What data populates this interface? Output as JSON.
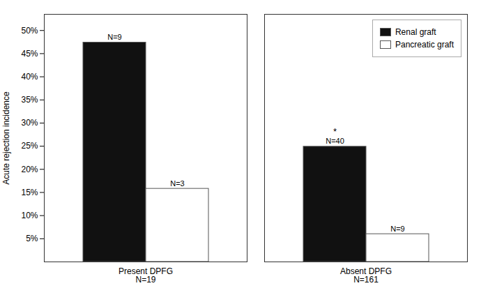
{
  "chart_data": {
    "type": "bar",
    "categories": [
      "Present DPFG\nN=19",
      "Absent DPFG\nN=161"
    ],
    "series": [
      {
        "name": "Renal graft",
        "color": "#111111",
        "values": [
          0.474,
          0.249
        ],
        "labels": [
          "N=9",
          "N=40"
        ]
      },
      {
        "name": "Pancreatic graft",
        "color": "#ffffff",
        "values": [
          0.158,
          0.06
        ],
        "labels": [
          "N=3",
          "N=9"
        ]
      }
    ],
    "annotations": [
      {
        "text": "*",
        "category": "Absent DPFG\nN=161",
        "series": "Renal graft"
      }
    ],
    "ylabel": "Acute rejection incidence",
    "ylim": [
      0,
      0.535
    ],
    "yticks": [
      {
        "value": 0.05,
        "label": "5%"
      },
      {
        "value": 0.1,
        "label": "10%"
      },
      {
        "value": 0.15,
        "label": "15%"
      },
      {
        "value": 0.2,
        "label": "20%"
      },
      {
        "value": 0.25,
        "label": "25%"
      },
      {
        "value": 0.3,
        "label": "30%"
      },
      {
        "value": 0.35,
        "label": "35%"
      },
      {
        "value": 0.4,
        "label": "40%"
      },
      {
        "value": 0.45,
        "label": "45%"
      },
      {
        "value": 0.5,
        "label": "50%"
      }
    ],
    "legend": "upper right",
    "grid": false
  }
}
